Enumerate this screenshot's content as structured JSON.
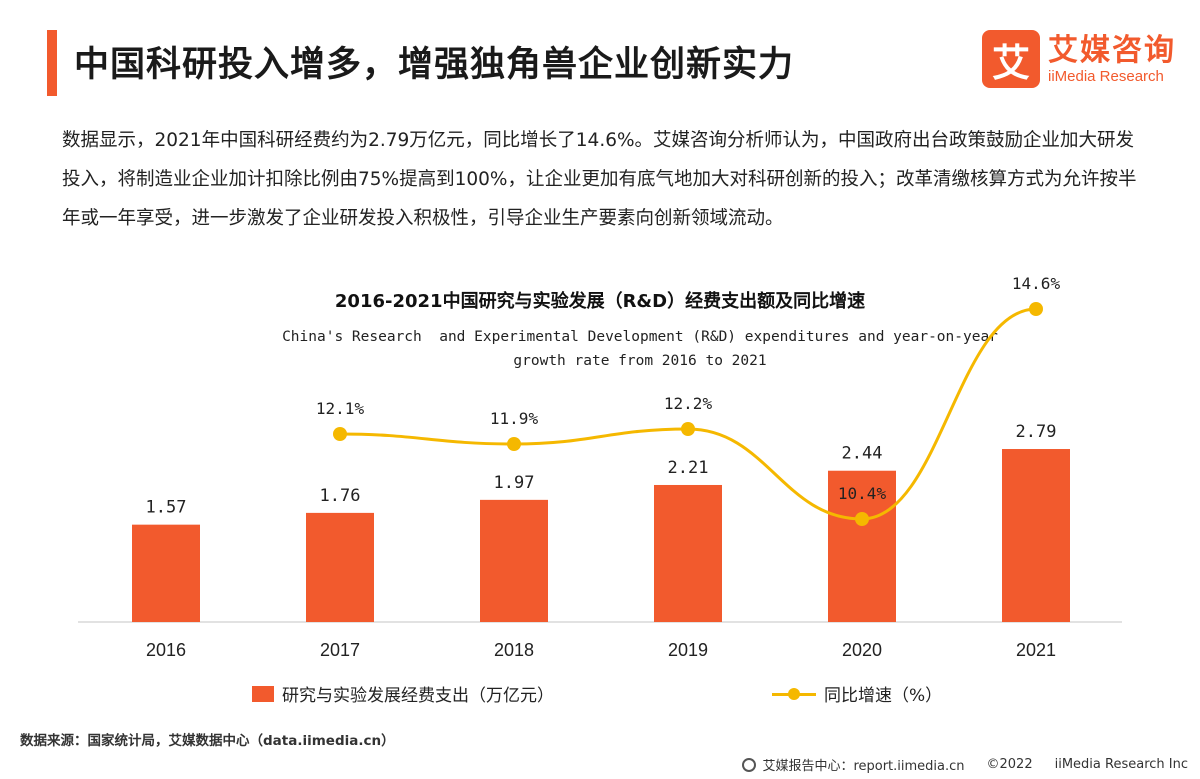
{
  "header": {
    "title": "中国科研投入增多，增强独角兽企业创新实力",
    "logo_mark": "艾",
    "logo_cn": "艾媒咨询",
    "logo_en": "iiMedia Research"
  },
  "intro": "数据显示，2021年中国科研经费约为2.79万亿元，同比增长了14.6%。艾媒咨询分析师认为，中国政府出台政策鼓励企业加大研发投入，将制造业企业加计扣除比例由75%提高到100%，让企业更加有底气地加大对科研创新的投入；改革清缴核算方式为允许按半年或一年享受，进一步激发了企业研发投入积极性，引导企业生产要素向创新领域流动。",
  "chart_data": {
    "type": "bar",
    "title": "2016-2021中国研究与实验发展（R&D）经费支出额及同比增速",
    "subtitle": "China's Research  and Experimental Development (R&D) expenditures and year-on-year\ngrowth rate from 2016 to 2021",
    "categories": [
      "2016",
      "2017",
      "2018",
      "2019",
      "2020",
      "2021"
    ],
    "series": [
      {
        "name": "研究与实验发展经费支出（万亿元）",
        "type": "bar",
        "values": [
          1.57,
          1.76,
          1.97,
          2.21,
          2.44,
          2.79
        ],
        "labels": [
          "1.57",
          "1.76",
          "1.97",
          "2.21",
          "2.44",
          "2.79"
        ],
        "color": "#f25a2d"
      },
      {
        "name": "同比增速（%）",
        "type": "line",
        "values": [
          null,
          12.1,
          11.9,
          12.2,
          10.4,
          14.6
        ],
        "labels": [
          "",
          "12.1%",
          "11.9%",
          "12.2%",
          "10.4%",
          "14.6%"
        ],
        "color": "#f5b800"
      }
    ],
    "legend_position": "bottom",
    "grid": false
  },
  "source": "数据来源：国家统计局，艾媒数据中心（data.iimedia.cn）",
  "footer": {
    "report": "艾媒报告中心：report.iimedia.cn",
    "copyright": "©2022",
    "company": "iiMedia Research Inc"
  }
}
